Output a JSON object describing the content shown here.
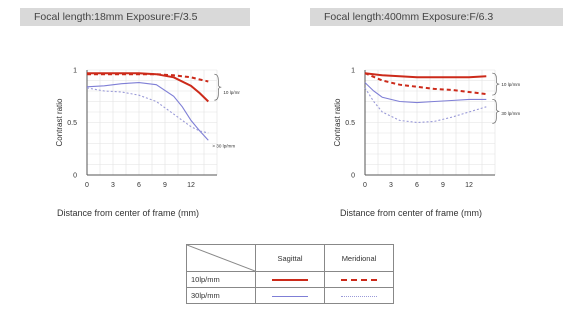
{
  "chart_data": [
    {
      "type": "line",
      "title": "Focal length:18mm  Exposure:F/3.5",
      "xlabel": "Distance from center of frame (mm)",
      "ylabel": "Contrast ratio",
      "xlim": [
        0,
        15
      ],
      "ylim": [
        0,
        1
      ],
      "xticks": [
        "0",
        "3",
        "6",
        "9",
        "12"
      ],
      "yticks": [
        "0",
        "0.5",
        "1"
      ],
      "grid": true,
      "annotations": [
        "10 lp/mm",
        "30 lp/mm"
      ],
      "series": [
        {
          "name": "10 lp/mm Sagittal",
          "color": "#cc2a1a",
          "dash": "solid",
          "x": [
            0,
            2,
            4,
            6,
            8,
            10,
            12,
            13,
            14
          ],
          "y": [
            0.97,
            0.97,
            0.97,
            0.97,
            0.96,
            0.93,
            0.85,
            0.78,
            0.7
          ]
        },
        {
          "name": "10 lp/mm Meridional",
          "color": "#cc2a1a",
          "dash": "dashed",
          "x": [
            0,
            2,
            4,
            6,
            8,
            10,
            12,
            13,
            14
          ],
          "y": [
            0.96,
            0.96,
            0.96,
            0.96,
            0.96,
            0.95,
            0.93,
            0.91,
            0.89
          ]
        },
        {
          "name": "30 lp/mm Sagittal",
          "color": "#7f7fd6",
          "dash": "solid",
          "x": [
            0,
            2,
            4,
            6,
            8,
            10,
            11,
            12,
            13,
            14
          ],
          "y": [
            0.84,
            0.85,
            0.87,
            0.88,
            0.86,
            0.75,
            0.65,
            0.52,
            0.42,
            0.33
          ]
        },
        {
          "name": "30 lp/mm Meridional",
          "color": "#9a9ad8",
          "dash": "dotted",
          "x": [
            0,
            2,
            4,
            6,
            8,
            10,
            12,
            13,
            14
          ],
          "y": [
            0.83,
            0.8,
            0.79,
            0.76,
            0.7,
            0.58,
            0.46,
            0.42,
            0.4
          ]
        }
      ]
    },
    {
      "type": "line",
      "title": "Focal length:400mm  Exposure:F/6.3",
      "xlabel": "Distance from center of frame (mm)",
      "ylabel": "Contrast ratio",
      "xlim": [
        0,
        15
      ],
      "ylim": [
        0,
        1
      ],
      "xticks": [
        "0",
        "3",
        "6",
        "9",
        "12"
      ],
      "yticks": [
        "0",
        "0.5",
        "1"
      ],
      "grid": true,
      "annotations": [
        "10 lp/mm",
        "30 lp/mm"
      ],
      "series": [
        {
          "name": "10 lp/mm Sagittal",
          "color": "#cc2a1a",
          "dash": "solid",
          "x": [
            0,
            2,
            4,
            6,
            8,
            10,
            12,
            14
          ],
          "y": [
            0.97,
            0.95,
            0.94,
            0.93,
            0.93,
            0.93,
            0.93,
            0.94
          ]
        },
        {
          "name": "10 lp/mm Meridional",
          "color": "#cc2a1a",
          "dash": "dashed",
          "x": [
            0,
            2,
            4,
            6,
            8,
            10,
            12,
            14
          ],
          "y": [
            0.97,
            0.9,
            0.86,
            0.84,
            0.82,
            0.81,
            0.79,
            0.77
          ]
        },
        {
          "name": "30 lp/mm Sagittal",
          "color": "#7f7fd6",
          "dash": "solid",
          "x": [
            0,
            1,
            2,
            4,
            6,
            8,
            10,
            12,
            14
          ],
          "y": [
            0.88,
            0.8,
            0.74,
            0.7,
            0.69,
            0.7,
            0.71,
            0.72,
            0.72
          ]
        },
        {
          "name": "30 lp/mm Meridional",
          "color": "#9a9ad8",
          "dash": "dotted",
          "x": [
            0,
            1,
            2,
            4,
            6,
            8,
            10,
            12,
            14
          ],
          "y": [
            0.83,
            0.7,
            0.6,
            0.52,
            0.5,
            0.51,
            0.55,
            0.6,
            0.65
          ]
        }
      ]
    }
  ],
  "legend_table": {
    "columns": [
      "Sagittal",
      "Meridional"
    ],
    "rows": [
      "10lp/mm",
      "30lp/mm"
    ]
  }
}
